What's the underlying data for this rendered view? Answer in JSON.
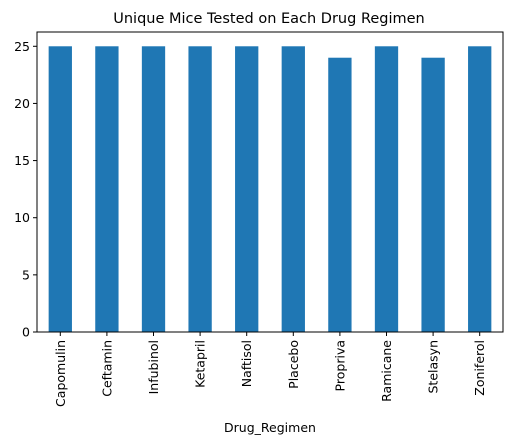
{
  "chart_data": {
    "type": "bar",
    "title": "Unique Mice Tested on Each Drug Regimen",
    "xlabel": "Drug_Regimen",
    "ylabel": "",
    "categories": [
      "Capomulin",
      "Ceftamin",
      "Infubinol",
      "Ketapril",
      "Naftisol",
      "Placebo",
      "Propriva",
      "Ramicane",
      "Stelasyn",
      "Zoniferol"
    ],
    "values": [
      25,
      25,
      25,
      25,
      25,
      25,
      24,
      25,
      24,
      25
    ],
    "ylim": [
      0,
      26.25
    ],
    "yticks": [
      0,
      5,
      10,
      15,
      20,
      25
    ],
    "bar_color": "#1f77b4",
    "grid": false,
    "legend": "none"
  }
}
